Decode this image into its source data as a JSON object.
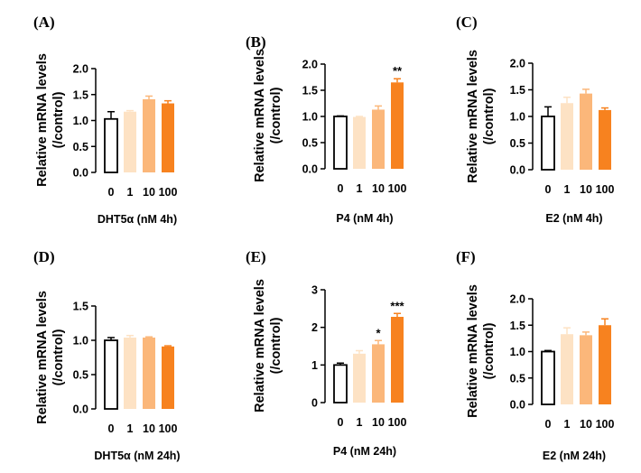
{
  "colors": {
    "bar_fills": [
      "#ffffff",
      "#fde2c4",
      "#fbb77a",
      "#f7821f"
    ],
    "bar_stroke_first": "#000000",
    "axis": "#000000"
  },
  "chart_data": [
    {
      "panel": "(A)",
      "type": "bar",
      "categories": [
        "0",
        "1",
        "10",
        "100"
      ],
      "values": [
        1.03,
        1.17,
        1.41,
        1.33
      ],
      "errors": [
        0.14,
        0.02,
        0.06,
        0.05
      ],
      "annotations": [
        "",
        "",
        "",
        ""
      ],
      "ylabel": [
        "Relative mRNA levels",
        "(/control)"
      ],
      "xlabel": "DHT5α (nM 4h)",
      "ylim": [
        0,
        2.0
      ],
      "yticks": [
        "0.0",
        "0.5",
        "1.0",
        "1.5",
        "2.0"
      ]
    },
    {
      "panel": "(B)",
      "type": "bar",
      "categories": [
        "0",
        "1",
        "10",
        "100"
      ],
      "values": [
        1.0,
        0.99,
        1.13,
        1.65
      ],
      "errors": [
        0.01,
        0.01,
        0.07,
        0.07
      ],
      "annotations": [
        "",
        "",
        "",
        "**"
      ],
      "ylabel": [
        "Relative mRNA levels",
        "(/control)"
      ],
      "xlabel": "P4 (nM 4h)",
      "ylim": [
        0,
        2.0
      ],
      "yticks": [
        "0.0",
        "0.5",
        "1.0",
        "1.5",
        "2.0"
      ]
    },
    {
      "panel": "(C)",
      "type": "bar",
      "categories": [
        "0",
        "1",
        "10",
        "100"
      ],
      "values": [
        1.0,
        1.25,
        1.43,
        1.12
      ],
      "errors": [
        0.18,
        0.11,
        0.08,
        0.04
      ],
      "annotations": [
        "",
        "",
        "",
        ""
      ],
      "ylabel": [
        "Relative mRNA levels",
        "(/control)"
      ],
      "xlabel": "E2 (nM 4h)",
      "ylim": [
        0,
        2.0
      ],
      "yticks": [
        "0.0",
        "0.5",
        "1.0",
        "1.5",
        "2.0"
      ]
    },
    {
      "panel": "(D)",
      "type": "bar",
      "categories": [
        "0",
        "1",
        "10",
        "100"
      ],
      "values": [
        1.0,
        1.04,
        1.04,
        0.91
      ],
      "errors": [
        0.04,
        0.03,
        0.01,
        0.01
      ],
      "annotations": [
        "",
        "",
        "",
        ""
      ],
      "ylabel": [
        "Relative mRNA levels",
        "(/control)"
      ],
      "xlabel": "DHT5α (nM 24h)",
      "ylim": [
        0,
        1.5
      ],
      "yticks": [
        "0.0",
        "0.5",
        "1.0",
        "1.5"
      ]
    },
    {
      "panel": "(E)",
      "type": "bar",
      "categories": [
        "0",
        "1",
        "10",
        "100"
      ],
      "values": [
        1.0,
        1.3,
        1.55,
        2.28
      ],
      "errors": [
        0.05,
        0.08,
        0.1,
        0.09
      ],
      "annotations": [
        "",
        "",
        "*",
        "***"
      ],
      "ylabel": [
        "Relative mRNA levels",
        "(/control)"
      ],
      "xlabel": "P4 (nM 24h)",
      "ylim": [
        0,
        3
      ],
      "yticks": [
        "0",
        "1",
        "2",
        "3"
      ]
    },
    {
      "panel": "(F)",
      "type": "bar",
      "categories": [
        "0",
        "1",
        "10",
        "100"
      ],
      "values": [
        1.0,
        1.33,
        1.31,
        1.5
      ],
      "errors": [
        0.02,
        0.12,
        0.06,
        0.12
      ],
      "annotations": [
        "",
        "",
        "",
        ""
      ],
      "ylabel": [
        "Relative mRNA levels",
        "(/control)"
      ],
      "xlabel": "E2 (nM 24h)",
      "ylim": [
        0,
        2.0
      ],
      "yticks": [
        "0.0",
        "0.5",
        "1.0",
        "1.5",
        "2.0"
      ]
    }
  ]
}
